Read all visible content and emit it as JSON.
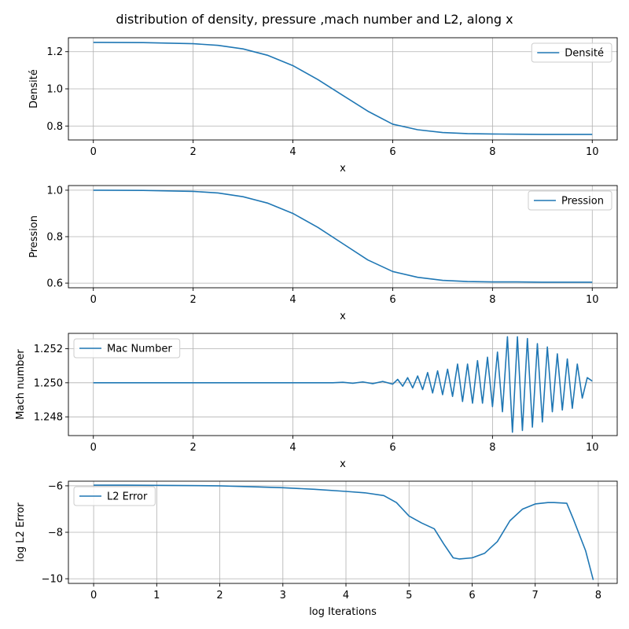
{
  "figure": {
    "title": "distribution of density, pressure ,mach number and L2, along x"
  },
  "chart_data": [
    {
      "type": "line",
      "xlabel": "x",
      "ylabel": "Densité",
      "xlim": [
        -0.5,
        10.5
      ],
      "ylim": [
        0.725,
        1.275
      ],
      "xticks": [
        0,
        2,
        4,
        6,
        8,
        10
      ],
      "yticks": [
        0.8,
        1.0,
        1.2
      ],
      "ytick_labels": [
        "0.8",
        "1.0",
        "1.2"
      ],
      "grid": true,
      "legend_position": "upper right",
      "series": [
        {
          "name": "Densité",
          "color": "#1f77b4",
          "x": [
            0,
            1,
            2,
            2.5,
            3,
            3.5,
            4,
            4.5,
            5,
            5.5,
            6,
            6.5,
            7,
            7.5,
            8,
            8.5,
            9,
            9.5,
            10
          ],
          "y": [
            1.25,
            1.249,
            1.243,
            1.234,
            1.215,
            1.18,
            1.125,
            1.05,
            0.965,
            0.88,
            0.81,
            0.78,
            0.765,
            0.759,
            0.757,
            0.756,
            0.755,
            0.755,
            0.755
          ]
        }
      ]
    },
    {
      "type": "line",
      "xlabel": "x",
      "ylabel": "Pression",
      "xlim": [
        -0.5,
        10.5
      ],
      "ylim": [
        0.58,
        1.02
      ],
      "xticks": [
        0,
        2,
        4,
        6,
        8,
        10
      ],
      "yticks": [
        0.6,
        0.8,
        1.0
      ],
      "ytick_labels": [
        "0.6",
        "0.8",
        "1.0"
      ],
      "grid": true,
      "legend_position": "upper right",
      "series": [
        {
          "name": "Pression",
          "color": "#1f77b4",
          "x": [
            0,
            1,
            2,
            2.5,
            3,
            3.5,
            4,
            4.5,
            5,
            5.5,
            6,
            6.5,
            7,
            7.5,
            8,
            8.5,
            9,
            9.5,
            10
          ],
          "y": [
            1.0,
            0.999,
            0.995,
            0.988,
            0.972,
            0.944,
            0.9,
            0.84,
            0.77,
            0.7,
            0.65,
            0.625,
            0.612,
            0.607,
            0.605,
            0.605,
            0.604,
            0.604,
            0.604
          ]
        }
      ]
    },
    {
      "type": "line",
      "xlabel": "x",
      "ylabel": "Mach number",
      "xlim": [
        -0.5,
        10.5
      ],
      "ylim": [
        1.2469,
        1.2529
      ],
      "xticks": [
        0,
        2,
        4,
        6,
        8,
        10
      ],
      "yticks": [
        1.248,
        1.25,
        1.252
      ],
      "ytick_labels": [
        "1.248",
        "1.250",
        "1.252"
      ],
      "grid": true,
      "legend_position": "upper left",
      "series": [
        {
          "name": "Mac Number",
          "color": "#1f77b4",
          "x": [
            0,
            4.8,
            5.0,
            5.2,
            5.4,
            5.6,
            5.8,
            6.0,
            6.1,
            6.2,
            6.3,
            6.4,
            6.5,
            6.6,
            6.7,
            6.8,
            6.9,
            7.0,
            7.1,
            7.2,
            7.3,
            7.4,
            7.5,
            7.6,
            7.7,
            7.8,
            7.9,
            8.0,
            8.1,
            8.2,
            8.3,
            8.4,
            8.5,
            8.6,
            8.7,
            8.8,
            8.9,
            9.0,
            9.1,
            9.2,
            9.3,
            9.4,
            9.5,
            9.6,
            9.7,
            9.8,
            9.9,
            10.0
          ],
          "y": [
            1.25,
            1.25,
            1.25003,
            1.24997,
            1.25005,
            1.24995,
            1.25008,
            1.24992,
            1.2502,
            1.2498,
            1.2503,
            1.2497,
            1.2504,
            1.2496,
            1.2506,
            1.2494,
            1.2507,
            1.2493,
            1.2508,
            1.2492,
            1.2511,
            1.2489,
            1.2511,
            1.2488,
            1.2513,
            1.2488,
            1.2515,
            1.2486,
            1.2518,
            1.2483,
            1.2527,
            1.2471,
            1.2527,
            1.2472,
            1.2526,
            1.2474,
            1.2523,
            1.2477,
            1.2521,
            1.2483,
            1.2517,
            1.2484,
            1.2514,
            1.2485,
            1.2511,
            1.2491,
            1.2503,
            1.2501
          ]
        }
      ]
    },
    {
      "type": "line",
      "xlabel": "log Iterations",
      "ylabel": "log L2 Error",
      "xlim": [
        -0.4,
        8.3
      ],
      "ylim": [
        -10.2,
        -5.8
      ],
      "xticks": [
        0,
        1,
        2,
        3,
        4,
        5,
        6,
        7,
        8
      ],
      "yticks": [
        -10,
        -8,
        -6
      ],
      "ytick_labels": [
        "−10",
        "−8",
        "−6"
      ],
      "grid": true,
      "legend_position": "upper left",
      "series": [
        {
          "name": "L2 Error",
          "color": "#1f77b4",
          "x": [
            0,
            0.5,
            1,
            1.5,
            2,
            2.5,
            3,
            3.5,
            4,
            4.3,
            4.6,
            4.8,
            5.0,
            5.2,
            5.4,
            5.55,
            5.7,
            5.8,
            6.0,
            6.2,
            6.4,
            6.6,
            6.8,
            7.0,
            7.2,
            7.3,
            7.5,
            7.6,
            7.8,
            7.92
          ],
          "y": [
            -5.97,
            -5.97,
            -5.98,
            -5.99,
            -6.0,
            -6.04,
            -6.08,
            -6.15,
            -6.24,
            -6.3,
            -6.42,
            -6.72,
            -7.3,
            -7.6,
            -7.85,
            -8.5,
            -9.1,
            -9.15,
            -9.1,
            -8.9,
            -8.4,
            -7.5,
            -7.0,
            -6.78,
            -6.72,
            -6.72,
            -6.75,
            -7.4,
            -8.8,
            -10.05
          ]
        }
      ]
    }
  ]
}
